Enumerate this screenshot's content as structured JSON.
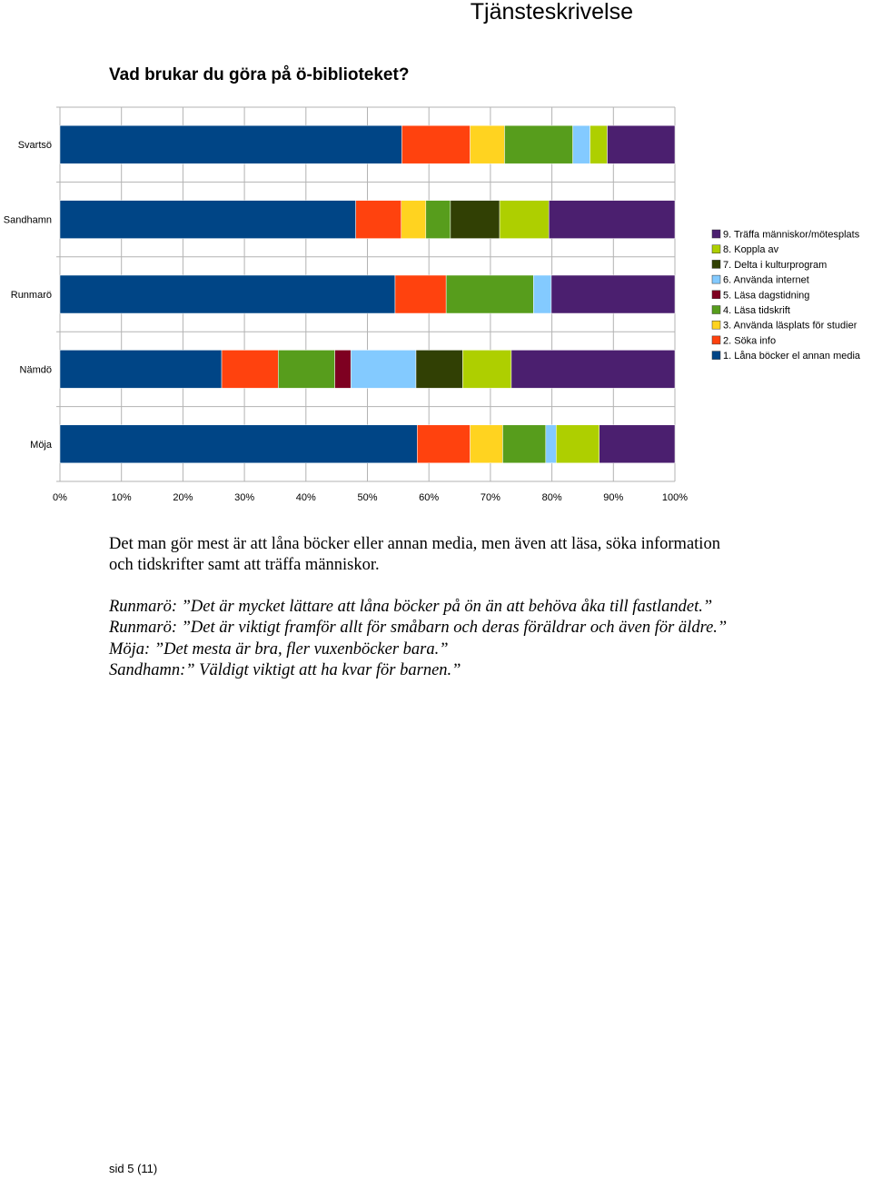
{
  "header": {
    "title": "Tjänsteskrivelse"
  },
  "heading": "Vad brukar du göra på ö-biblioteket?",
  "chart_data": {
    "type": "bar",
    "orientation": "horizontal",
    "stacked": "percent",
    "categories": [
      "Svartsö",
      "Sandhamn",
      "Runmarö",
      "Nämdö",
      "Möja"
    ],
    "xlim": [
      0,
      100
    ],
    "x_ticks": [
      "0%",
      "10%",
      "20%",
      "30%",
      "40%",
      "50%",
      "60%",
      "70%",
      "80%",
      "90%",
      "100%"
    ],
    "grid": true,
    "legend_position": "right",
    "series": [
      {
        "name": "1. Låna böcker el annan media",
        "color": "#004586",
        "values": [
          55.6,
          48.1,
          54.5,
          26.3,
          58.1
        ]
      },
      {
        "name": "2. Söka info",
        "color": "#ff420e",
        "values": [
          11.1,
          7.4,
          8.3,
          9.2,
          8.6
        ]
      },
      {
        "name": "3. Använda läsplats för studier",
        "color": "#ffd320",
        "values": [
          5.6,
          4.0,
          0,
          0,
          5.3
        ]
      },
      {
        "name": "4. Läsa tidskrift",
        "color": "#579d1c",
        "values": [
          11.1,
          4.0,
          14.2,
          9.2,
          7.0
        ]
      },
      {
        "name": "5. Läsa dagstidning",
        "color": "#7e0021",
        "values": [
          0,
          0,
          0,
          2.6,
          0
        ]
      },
      {
        "name": "6. Använda internet",
        "color": "#83caff",
        "values": [
          2.8,
          0,
          2.9,
          10.6,
          1.7
        ]
      },
      {
        "name": "7. Delta i kulturprogram",
        "color": "#314004",
        "values": [
          0,
          8.0,
          0,
          7.6,
          0
        ]
      },
      {
        "name": "8. Koppla av",
        "color": "#aecf00",
        "values": [
          2.8,
          8.0,
          0,
          7.9,
          7.0
        ]
      },
      {
        "name": "9. Träffa människor/mötesplats",
        "color": "#4b1f6f",
        "values": [
          11.0,
          20.5,
          20.1,
          26.6,
          12.3
        ]
      }
    ]
  },
  "paragraph": "Det man gör mest är att låna böcker eller annan media, men även att läsa, söka information och tidskrifter samt att träffa människor.",
  "quotes": [
    "Runmarö: ”Det är mycket lättare att låna böcker på ön än att behöva åka till fastlandet.”",
    "Runmarö: ”Det är viktigt framför allt för småbarn och deras föräldrar och även för äldre.”",
    "Möja: ”Det mesta är bra, fler vuxenböcker bara.”",
    "Sandhamn:” Väldigt viktigt att ha kvar för barnen.”"
  ],
  "footer": {
    "page": "sid  5 (11)"
  }
}
